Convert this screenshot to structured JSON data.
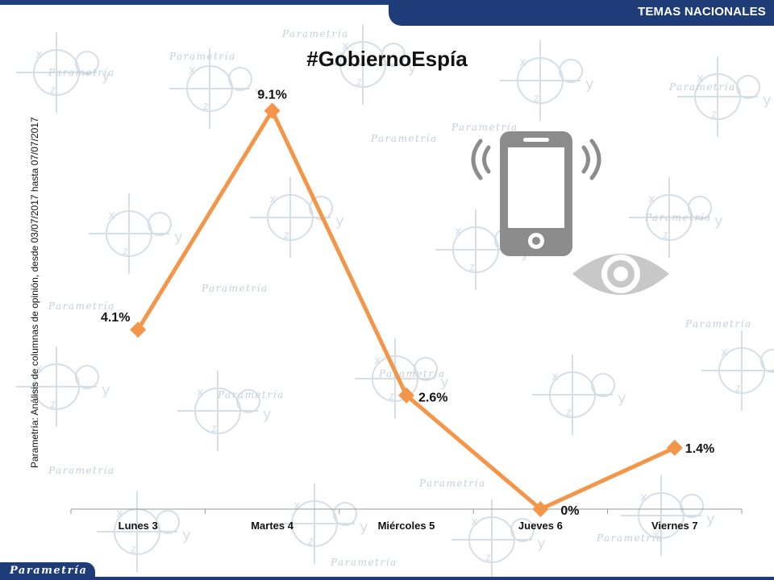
{
  "header": {
    "section_label": "TEMAS NACIONALES"
  },
  "side_note": "Parametría: Análisis de columnas de opinión, desde 03/07/2017 hasta 07/07/2017",
  "footer": {
    "brand": "Parametría"
  },
  "background": {
    "watermark_text": "Parametría",
    "axis_letters": [
      "x",
      "y",
      "z"
    ]
  },
  "icons": [
    "smartphone-signal-icon",
    "eye-icon"
  ],
  "colors": {
    "line": "#f4964a",
    "header": "#1d3c78",
    "icon_gray": "#8c8c8c",
    "icon_light": "#c8c8c8"
  },
  "chart_data": {
    "type": "line",
    "title": "#GobiernoEspía",
    "categories": [
      "Lunes 3",
      "Martes 4",
      "Miércoles 5",
      "Jueves 6",
      "Viernes 7"
    ],
    "values": [
      4.1,
      9.1,
      2.6,
      0,
      1.4
    ],
    "data_labels": [
      "4.1%",
      "9.1%",
      "2.6%",
      "0%",
      "1.4%"
    ],
    "ylim": [
      0,
      9.9
    ],
    "grid": false,
    "legend": "none"
  }
}
